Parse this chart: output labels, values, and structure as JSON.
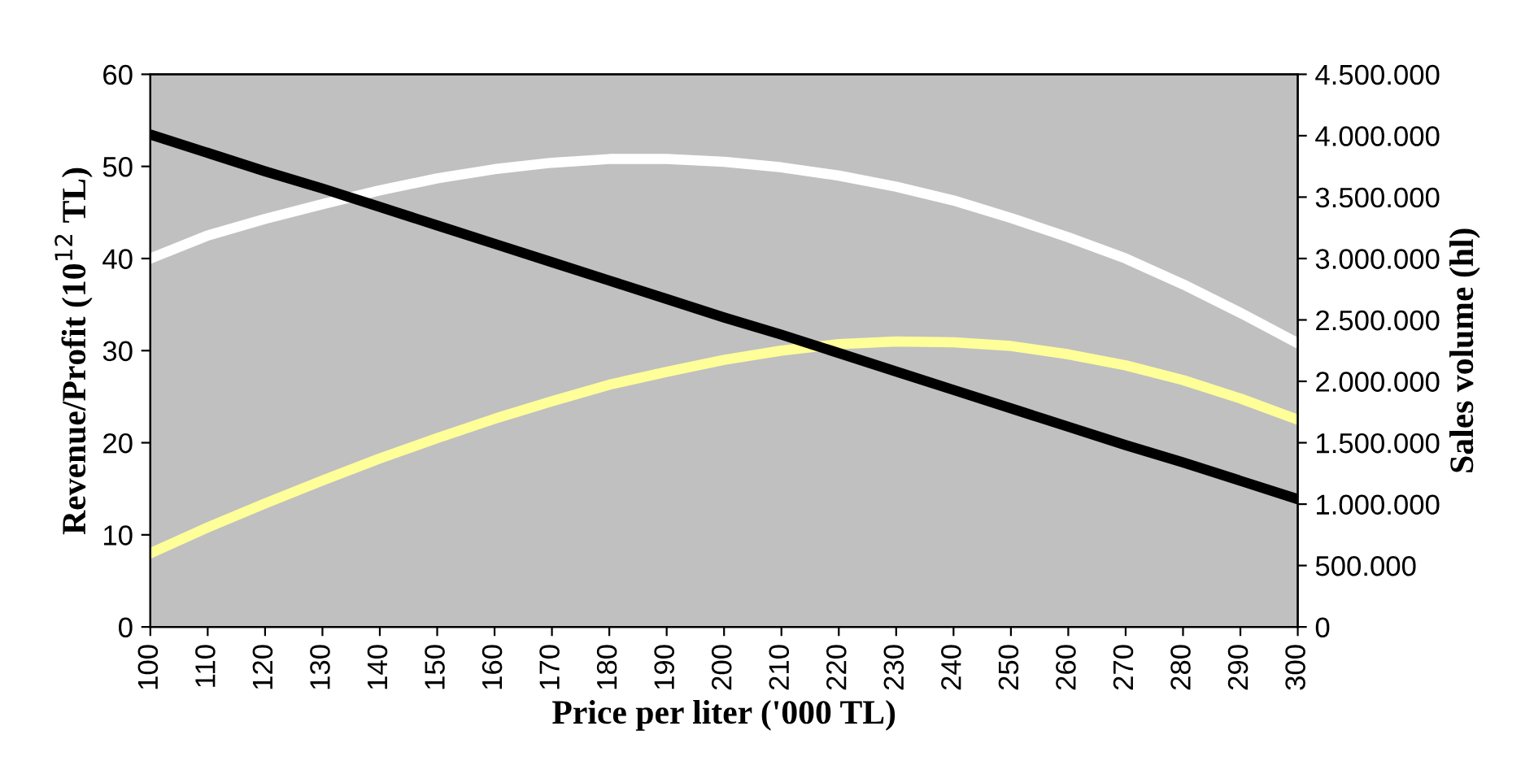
{
  "chart_data": {
    "type": "line",
    "xlabel": "Price per liter ('000 TL)",
    "ylabel": "Revenue/Profit (10$^{12}$ TL)",
    "y2label": "Sales volume (hl)",
    "x": [
      100,
      110,
      120,
      130,
      140,
      150,
      160,
      170,
      180,
      190,
      200,
      210,
      220,
      230,
      240,
      250,
      260,
      270,
      280,
      290,
      300
    ],
    "series": [
      {
        "color": "#ffffff",
        "values": [
          40,
          42.5,
          44.3,
          45.9,
          47.4,
          48.7,
          49.7,
          50.4,
          50.8,
          50.8,
          50.5,
          49.9,
          49.0,
          47.8,
          46.3,
          44.4,
          42.3,
          40.0,
          37.2,
          34.1,
          30.8
        ]
      },
      {
        "color": "#ffff99",
        "values": [
          8,
          10.8,
          13.4,
          15.9,
          18.3,
          20.5,
          22.6,
          24.5,
          26.3,
          27.7,
          29.0,
          30.0,
          30.7,
          31.0,
          30.9,
          30.5,
          29.6,
          28.4,
          26.8,
          24.8,
          22.5
        ]
      },
      {
        "color": "#000000",
        "axis": "y2",
        "values": [
          4010000,
          3860000,
          3710000,
          3570000,
          3420000,
          3270000,
          3120000,
          2970000,
          2820000,
          2670000,
          2520000,
          2380000,
          2230000,
          2080000,
          1930000,
          1780000,
          1630000,
          1480000,
          1340000,
          1190000,
          1040000
        ]
      }
    ],
    "xlim": [
      100,
      300
    ],
    "xticks": [
      100,
      110,
      120,
      130,
      140,
      150,
      160,
      170,
      180,
      190,
      200,
      210,
      220,
      230,
      240,
      250,
      260,
      270,
      280,
      290,
      300
    ],
    "ylim": [
      0,
      60
    ],
    "yticks": [
      0,
      10,
      20,
      30,
      40,
      50,
      60
    ],
    "y2lim": [
      0,
      4500000
    ],
    "y2ticks": [
      0,
      {
        "value": 500000,
        "label": "500.000"
      },
      {
        "value": 1000000,
        "label": "1.000.000"
      },
      {
        "value": 1500000,
        "label": "1.500.000"
      },
      {
        "value": 2000000,
        "label": "2.000.000"
      },
      {
        "value": 2500000,
        "label": "2.500.000"
      },
      {
        "value": 3000000,
        "label": "3.000.000"
      },
      {
        "value": 3500000,
        "label": "3.500.000"
      },
      {
        "value": 4000000,
        "label": "4.000.000"
      },
      {
        "value": 4500000,
        "label": "4.500.000"
      }
    ],
    "grid": false,
    "legend": false,
    "marker": "none",
    "line_style": "solid"
  }
}
